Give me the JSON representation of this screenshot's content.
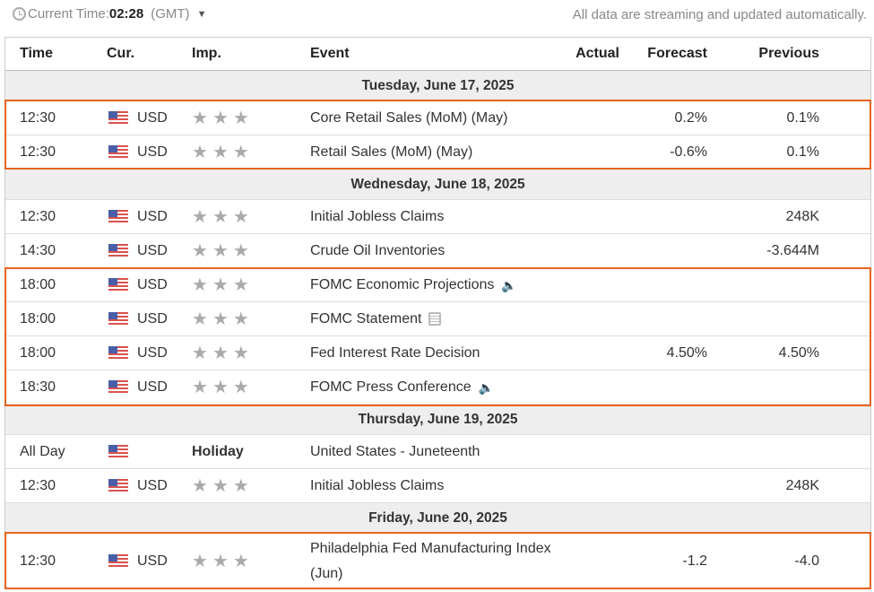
{
  "header": {
    "current_time_label": "Current Time:",
    "current_time": "02:28",
    "timezone": "(GMT)",
    "note": "All data are streaming and updated automatically."
  },
  "columns": {
    "time": "Time",
    "cur": "Cur.",
    "imp": "Imp.",
    "event": "Event",
    "actual": "Actual",
    "forecast": "Forecast",
    "previous": "Previous"
  },
  "colors": {
    "highlight": "#e8641e"
  },
  "days": [
    {
      "date": "Tuesday, June 17, 2025",
      "events": [
        {
          "time": "12:30",
          "cur": "USD",
          "event": "Core Retail Sales (MoM) (May)",
          "actual": "",
          "forecast": "0.2%",
          "previous": "0.1%"
        },
        {
          "time": "12:30",
          "cur": "USD",
          "event": "Retail Sales (MoM) (May)",
          "actual": "",
          "forecast": "-0.6%",
          "previous": "0.1%"
        }
      ]
    },
    {
      "date": "Wednesday, June 18, 2025",
      "events": [
        {
          "time": "12:30",
          "cur": "USD",
          "event": "Initial Jobless Claims",
          "actual": "",
          "forecast": "",
          "previous": "248K"
        },
        {
          "time": "14:30",
          "cur": "USD",
          "event": "Crude Oil Inventories",
          "actual": "",
          "forecast": "",
          "previous": "-3.644M"
        },
        {
          "time": "18:00",
          "cur": "USD",
          "event": "FOMC Economic Projections",
          "icon": "speaker-icon",
          "actual": "",
          "forecast": "",
          "previous": ""
        },
        {
          "time": "18:00",
          "cur": "USD",
          "event": "FOMC Statement",
          "icon": "document-icon",
          "actual": "",
          "forecast": "",
          "previous": ""
        },
        {
          "time": "18:00",
          "cur": "USD",
          "event": "Fed Interest Rate Decision",
          "actual": "",
          "forecast": "4.50%",
          "previous": "4.50%"
        },
        {
          "time": "18:30",
          "cur": "USD",
          "event": "FOMC Press Conference",
          "icon": "speaker-icon",
          "actual": "",
          "forecast": "",
          "previous": ""
        }
      ]
    },
    {
      "date": "Thursday, June 19, 2025",
      "events": [
        {
          "time": "All Day",
          "cur": "",
          "imp": "Holiday",
          "event": "United States - Juneteenth",
          "actual": "",
          "forecast": "",
          "previous": ""
        },
        {
          "time": "12:30",
          "cur": "USD",
          "event": "Initial Jobless Claims",
          "actual": "",
          "forecast": "",
          "previous": "248K"
        }
      ]
    },
    {
      "date": "Friday, June 20, 2025",
      "events": [
        {
          "time": "12:30",
          "cur": "USD",
          "event": "Philadelphia Fed Manufacturing Index (Jun)",
          "actual": "",
          "forecast": "-1.2",
          "previous": "-4.0"
        }
      ]
    }
  ]
}
